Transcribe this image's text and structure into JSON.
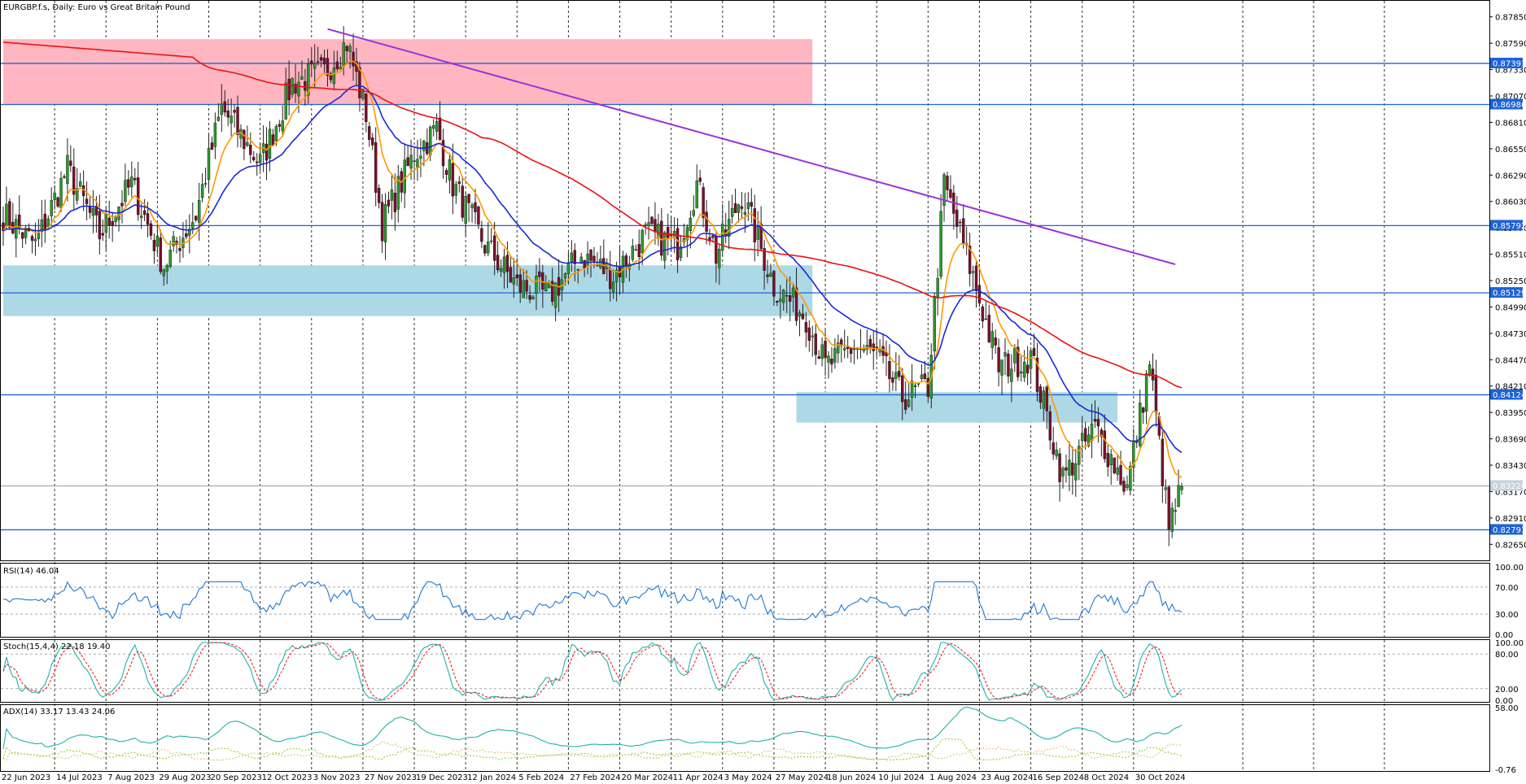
{
  "header": {
    "symbol_info": "EURGBP.f.s, Daily:  Euro vs Great Britain Pound"
  },
  "colors": {
    "bull": "#2a9a2a",
    "bear": "#7a0f2a",
    "level_line": "#1e63d6",
    "level_box": "#1e63d6",
    "resistance_zone": "#ffb6c1",
    "support_zone": "#add8e6",
    "ma_fast": "#ff9900",
    "ma_mid": "#1a28d8",
    "ma_slow": "#ee1111",
    "trendline": "#9b30d9",
    "rsi": "#1f78d1",
    "stoch_main": "#20b2aa",
    "stoch_signal": "#ee2222",
    "adx_main": "#20b2aa",
    "adx_plus": "#9acd32",
    "adx_minus": "#e0c070"
  },
  "price_axis": {
    "ticks": [
      "0.87850",
      "0.87590",
      "0.87330",
      "0.87070",
      "0.86810",
      "0.86550",
      "0.86290",
      "0.86030",
      "0.85770",
      "0.85510",
      "0.85250",
      "0.84990",
      "0.84730",
      "0.84470",
      "0.84210",
      "0.83950",
      "0.83690",
      "0.83430",
      "0.83170",
      "0.82910",
      "0.82650"
    ]
  },
  "levels": [
    {
      "label": "0.87391",
      "value": 0.87391
    },
    {
      "label": "0.86986",
      "value": 0.86986
    },
    {
      "label": "0.85792",
      "value": 0.85792
    },
    {
      "label": "0.85129",
      "value": 0.85129
    },
    {
      "label": "0.84124",
      "value": 0.84124
    },
    {
      "label": "0.82793",
      "value": 0.82793
    }
  ],
  "current_price": {
    "label": "0.83226",
    "value": 0.83226
  },
  "x_axis": {
    "ticks": [
      "22 Jun 2023",
      "14 Jul 2023",
      "7 Aug 2023",
      "29 Aug 2023",
      "20 Sep 2023",
      "12 Oct 2023",
      "3 Nov 2023",
      "27 Nov 2023",
      "19 Dec 2023",
      "12 Jan 2024",
      "5 Feb 2024",
      "27 Feb 2024",
      "20 Mar 2024",
      "11 Apr 2024",
      "3 May 2024",
      "27 May 2024",
      "18 Jun 2024",
      "10 Jul 2024",
      "1 Aug 2024",
      "23 Aug 2024",
      "16 Sep 2024",
      "8 Oct 2024",
      "30 Oct 2024"
    ]
  },
  "rsi_panel": {
    "label": "RSI(14) 46.04",
    "axis": [
      "100.00",
      "70.00",
      "30.00",
      "0.00"
    ]
  },
  "stoch_panel": {
    "label": "Stoch(15,4,4) 22.18 19.40",
    "axis": [
      "100.00",
      "80.00",
      "20.00",
      "0.00"
    ]
  },
  "adx_panel": {
    "label": "ADX(14) 33.17 13.43 24.06",
    "axis": [
      "58.00",
      "-0.76"
    ]
  },
  "chart_data": {
    "type": "candlestick",
    "title": "EURGBP.f.s, Daily:  Euro vs Great Britain Pound",
    "bars": 368,
    "anchors": [
      {
        "bar": 0,
        "close": 0.859
      },
      {
        "bar": 10,
        "close": 0.856
      },
      {
        "bar": 20,
        "close": 0.8635
      },
      {
        "bar": 30,
        "close": 0.857
      },
      {
        "bar": 40,
        "close": 0.862
      },
      {
        "bar": 50,
        "close": 0.854
      },
      {
        "bar": 60,
        "close": 0.859
      },
      {
        "bar": 68,
        "close": 0.8695
      },
      {
        "bar": 80,
        "close": 0.864
      },
      {
        "bar": 90,
        "close": 0.872
      },
      {
        "bar": 100,
        "close": 0.873
      },
      {
        "bar": 107,
        "close": 0.876
      },
      {
        "bar": 113,
        "close": 0.869
      },
      {
        "bar": 118,
        "close": 0.858
      },
      {
        "bar": 128,
        "close": 0.865
      },
      {
        "bar": 135,
        "close": 0.8675
      },
      {
        "bar": 140,
        "close": 0.862
      },
      {
        "bar": 150,
        "close": 0.856
      },
      {
        "bar": 160,
        "close": 0.852
      },
      {
        "bar": 170,
        "close": 0.851
      },
      {
        "bar": 180,
        "close": 0.855
      },
      {
        "bar": 190,
        "close": 0.853
      },
      {
        "bar": 200,
        "close": 0.857
      },
      {
        "bar": 210,
        "close": 0.856
      },
      {
        "bar": 216,
        "close": 0.862
      },
      {
        "bar": 222,
        "close": 0.855
      },
      {
        "bar": 230,
        "close": 0.861
      },
      {
        "bar": 240,
        "close": 0.852
      },
      {
        "bar": 250,
        "close": 0.849
      },
      {
        "bar": 256,
        "close": 0.844
      },
      {
        "bar": 265,
        "close": 0.846
      },
      {
        "bar": 272,
        "close": 0.845
      },
      {
        "bar": 280,
        "close": 0.841
      },
      {
        "bar": 288,
        "close": 0.842
      },
      {
        "bar": 293,
        "close": 0.862
      },
      {
        "bar": 300,
        "close": 0.855
      },
      {
        "bar": 310,
        "close": 0.844
      },
      {
        "bar": 320,
        "close": 0.845
      },
      {
        "bar": 330,
        "close": 0.833
      },
      {
        "bar": 340,
        "close": 0.838
      },
      {
        "bar": 350,
        "close": 0.832
      },
      {
        "bar": 357,
        "close": 0.8445
      },
      {
        "bar": 363,
        "close": 0.828
      },
      {
        "bar": 367,
        "close": 0.8322
      }
    ],
    "zones": [
      {
        "name": "resistance",
        "from_bar": 0,
        "to_bar": 252,
        "low": 0.86986,
        "high": 0.8763
      },
      {
        "name": "support",
        "from_bar": 0,
        "to_bar": 252,
        "low": 0.849,
        "high": 0.854
      },
      {
        "name": "support",
        "from_bar": 247,
        "to_bar": 347,
        "low": 0.8385,
        "high": 0.8415
      }
    ],
    "trendline": {
      "from": {
        "bar": 101,
        "price": 0.8773
      },
      "to": {
        "bar": 365,
        "price": 0.8541
      }
    },
    "ylim": [
      0.825,
      0.88
    ]
  }
}
